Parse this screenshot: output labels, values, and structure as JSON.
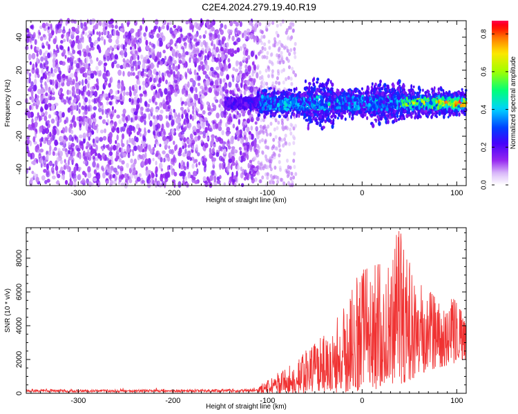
{
  "title": "C2E4.2024.279.19.40.R19",
  "chart_data": [
    {
      "type": "heatmap",
      "title": "C2E4.2024.279.19.40.R19",
      "xlabel": "Height of straight line (km)",
      "ylabel": "Frequency (Hz)",
      "xlim": [
        -355,
        110
      ],
      "ylim": [
        -50,
        50
      ],
      "x_ticks": [
        -300,
        -200,
        -100,
        0,
        100
      ],
      "y_ticks": [
        -40,
        -20,
        0,
        20,
        40
      ],
      "colorbar": {
        "label": "Normalized spectral amplitude",
        "range": [
          0,
          0.87
        ],
        "ticks": [
          0,
          0.2,
          0.4,
          0.6,
          0.8
        ],
        "colormap": "rainbow (white-purple-blue-cyan-green-yellow-red-magenta)"
      },
      "description_regions": [
        {
          "x_range": [
            -355,
            -110
          ],
          "freq_range": [
            -50,
            50
          ],
          "amplitude": "low (0.05-0.15), broadband noise"
        },
        {
          "x_range": [
            -110,
            110
          ],
          "freq_range": [
            -10,
            10
          ],
          "amplitude": "0.1-0.6, concentrated near 0 Hz"
        },
        {
          "x_range": [
            80,
            110
          ],
          "freq_range": [
            -2,
            2
          ],
          "amplitude": "peak ~0.8 near 0 Hz"
        }
      ]
    },
    {
      "type": "line",
      "xlabel": "Height of straight line (km)",
      "ylabel": "SNR (10 * v/v)",
      "xlim": [
        -355,
        110
      ],
      "ylim": [
        0,
        9800
      ],
      "x_ticks": [
        -300,
        -200,
        -100,
        0,
        100
      ],
      "y_ticks": [
        0,
        2000,
        4000,
        6000,
        8000
      ],
      "series": [
        {
          "color": "#f03232",
          "envelope_x": [
            -355,
            -300,
            -200,
            -110,
            -100,
            -80,
            -60,
            -40,
            -20,
            0,
            20,
            40,
            60,
            80,
            100,
            110
          ],
          "envelope_max": [
            350,
            300,
            300,
            350,
            900,
            1500,
            2500,
            3500,
            5000,
            7600,
            7800,
            9800,
            6500,
            6000,
            5500,
            4800
          ],
          "envelope_min": [
            0,
            0,
            0,
            0,
            0,
            0,
            0,
            0,
            0,
            100,
            300,
            500,
            1000,
            1500,
            1800,
            2000
          ]
        }
      ]
    }
  ],
  "colors": {
    "signal": "#f03232",
    "noise": "#8a3cf0"
  }
}
